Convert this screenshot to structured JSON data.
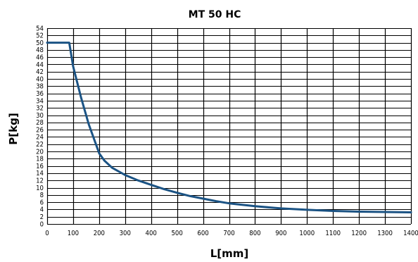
{
  "chart_data": {
    "type": "line",
    "title": "MT 50 HC",
    "xlabel": "L[mm]",
    "ylabel": "P[kg]",
    "xlim": [
      0,
      1400
    ],
    "ylim": [
      0,
      54
    ],
    "x_ticks": [
      0,
      100,
      200,
      300,
      400,
      500,
      600,
      700,
      800,
      900,
      1000,
      1100,
      1200,
      1300,
      1400
    ],
    "y_ticks": [
      0,
      2,
      4,
      6,
      8,
      10,
      12,
      14,
      16,
      18,
      20,
      22,
      24,
      26,
      28,
      30,
      32,
      34,
      36,
      38,
      40,
      42,
      44,
      46,
      48,
      50,
      52,
      54
    ],
    "grid": true,
    "colors": {
      "line": "#1b5384",
      "grid": "#000000"
    },
    "series": [
      {
        "x": [
          0,
          85,
          100,
          130,
          160,
          190,
          200,
          220,
          250,
          300,
          350,
          400,
          450,
          500,
          550,
          600,
          650,
          700,
          800,
          900,
          1000,
          1100,
          1200,
          1300,
          1400
        ],
        "y": [
          50,
          50,
          43.5,
          35,
          27.5,
          21.5,
          19.5,
          17.5,
          15.5,
          13.5,
          12,
          10.8,
          9.6,
          8.6,
          7.7,
          7,
          6.3,
          5.7,
          4.9,
          4.3,
          3.9,
          3.6,
          3.4,
          3.3,
          3.2
        ]
      }
    ]
  }
}
